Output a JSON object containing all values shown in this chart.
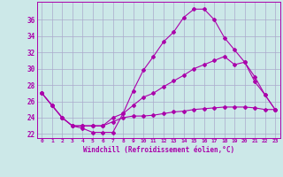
{
  "xlabel": "Windchill (Refroidissement éolien,°C)",
  "background_color": "#cce8e8",
  "grid_color": "#aaaacc",
  "line_color": "#aa00aa",
  "xlim": [
    -0.5,
    23.5
  ],
  "ylim": [
    21.5,
    38.2
  ],
  "xticks": [
    0,
    1,
    2,
    3,
    4,
    5,
    6,
    7,
    8,
    9,
    10,
    11,
    12,
    13,
    14,
    15,
    16,
    17,
    18,
    19,
    20,
    21,
    22,
    23
  ],
  "yticks": [
    22,
    24,
    26,
    28,
    30,
    32,
    34,
    36
  ],
  "line1_x": [
    0,
    1,
    2,
    3,
    4,
    5,
    6,
    7,
    8,
    9,
    10,
    11,
    12,
    13,
    14,
    15,
    16,
    17,
    18,
    19,
    20,
    21,
    22,
    23
  ],
  "line1_y": [
    27.0,
    25.5,
    24.0,
    23.0,
    22.7,
    22.2,
    22.2,
    22.2,
    24.5,
    27.3,
    29.8,
    31.5,
    33.3,
    34.5,
    36.3,
    37.3,
    37.3,
    36.0,
    33.8,
    32.3,
    30.8,
    28.4,
    26.8,
    25.0
  ],
  "line2_x": [
    0,
    1,
    2,
    3,
    4,
    5,
    6,
    7,
    8,
    9,
    10,
    11,
    12,
    13,
    14,
    15,
    16,
    17,
    18,
    19,
    20,
    21,
    22,
    23
  ],
  "line2_y": [
    27.0,
    25.5,
    24.0,
    23.0,
    23.0,
    23.0,
    23.0,
    24.0,
    24.5,
    25.5,
    26.5,
    27.0,
    27.8,
    28.5,
    29.2,
    30.0,
    30.5,
    31.0,
    31.5,
    30.5,
    30.8,
    29.0,
    26.8,
    25.0
  ],
  "line3_x": [
    0,
    1,
    2,
    3,
    4,
    5,
    6,
    7,
    8,
    9,
    10,
    11,
    12,
    13,
    14,
    15,
    16,
    17,
    18,
    19,
    20,
    21,
    22,
    23
  ],
  "line3_y": [
    27.0,
    25.5,
    24.0,
    23.0,
    23.0,
    23.0,
    23.0,
    23.5,
    24.0,
    24.2,
    24.2,
    24.3,
    24.5,
    24.7,
    24.8,
    25.0,
    25.1,
    25.2,
    25.3,
    25.3,
    25.3,
    25.2,
    25.0,
    25.0
  ]
}
